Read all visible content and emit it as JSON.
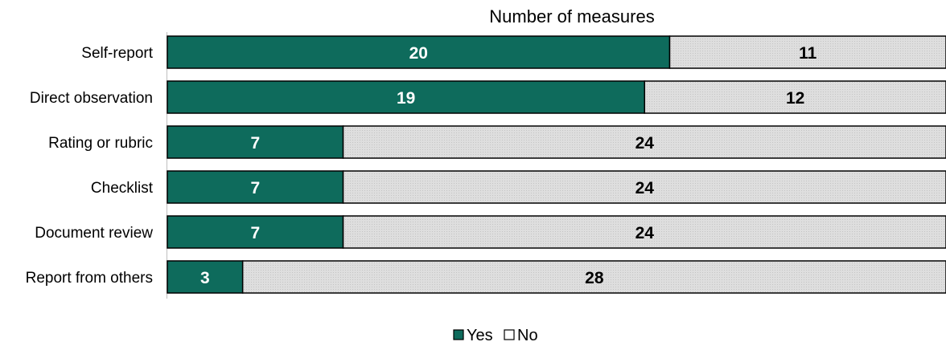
{
  "chart_data": {
    "type": "bar",
    "orientation": "horizontal",
    "stacked": true,
    "title": "Number of measures",
    "categories": [
      "Self-report",
      "Direct observation",
      "Rating or rubric",
      "Checklist",
      "Document review",
      "Report from others"
    ],
    "series": [
      {
        "name": "Yes",
        "values": [
          20,
          19,
          7,
          7,
          7,
          3
        ],
        "color": "#0e6b5c",
        "label_color": "#ffffff"
      },
      {
        "name": "No",
        "values": [
          11,
          12,
          24,
          24,
          24,
          28
        ],
        "color": "#d9d9d9",
        "label_color": "#000000"
      }
    ],
    "xlim": [
      0,
      31
    ],
    "grid": false,
    "legend": "bottom-center"
  }
}
